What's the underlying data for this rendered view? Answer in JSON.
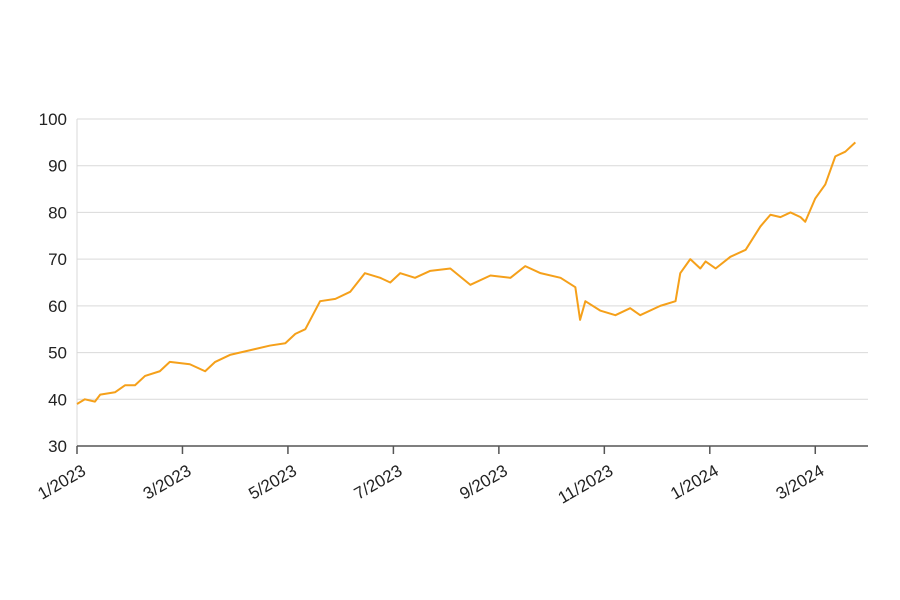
{
  "chart_data": {
    "type": "line",
    "x": [
      0,
      0.15,
      0.34,
      0.44,
      0.72,
      0.91,
      1.1,
      1.29,
      1.57,
      1.76,
      2.14,
      2.43,
      2.62,
      2.9,
      3.28,
      3.66,
      3.95,
      4.14,
      4.33,
      4.61,
      4.9,
      5.18,
      5.46,
      5.75,
      5.94,
      6.13,
      6.41,
      6.7,
      7.08,
      7.46,
      7.84,
      8.22,
      8.5,
      8.79,
      9.17,
      9.45,
      9.54,
      9.64,
      9.92,
      10.21,
      10.49,
      10.68,
      11.06,
      11.35,
      11.44,
      11.63,
      11.82,
      11.92,
      12.11,
      12.39,
      12.68,
      12.96,
      13.15,
      13.34,
      13.53,
      13.72,
      13.81,
      14.0,
      14.19,
      14.38,
      14.57,
      14.76
    ],
    "values": [
      39,
      40,
      39.5,
      41,
      41.5,
      43,
      43,
      45,
      46,
      48,
      47.5,
      46,
      48,
      49.5,
      50.5,
      51.5,
      52,
      54,
      55,
      61,
      61.5,
      63,
      67,
      66,
      65,
      67,
      66,
      67.5,
      68,
      64.5,
      66.5,
      66,
      68.5,
      67,
      66,
      64,
      57,
      61,
      59,
      58,
      59.5,
      58,
      60,
      61,
      67,
      70,
      68,
      69.5,
      68,
      70.5,
      72,
      77,
      79.5,
      79,
      80,
      79,
      78,
      83,
      86,
      92,
      93,
      95
    ],
    "color": "#f5a01a",
    "xlim": [
      0,
      15
    ],
    "xticks": [
      {
        "value": 0,
        "label": "1/2023"
      },
      {
        "value": 2,
        "label": "3/2023"
      },
      {
        "value": 4,
        "label": "5/2023"
      },
      {
        "value": 6,
        "label": "7/2023"
      },
      {
        "value": 8,
        "label": "9/2023"
      },
      {
        "value": 10,
        "label": "11/2023"
      },
      {
        "value": 12,
        "label": "1/2024"
      },
      {
        "value": 14,
        "label": "3/2024"
      }
    ],
    "ylim": [
      30,
      100
    ],
    "yticks": [
      30,
      40,
      50,
      60,
      70,
      80,
      90,
      100
    ],
    "grid": true
  }
}
